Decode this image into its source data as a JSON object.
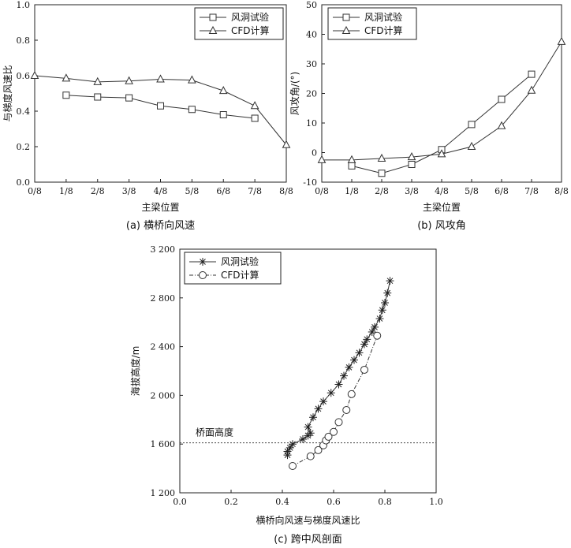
{
  "chart_data": [
    {
      "id": "a",
      "type": "line",
      "caption": "(a) 横桥向风速",
      "xlabel": "主梁位置",
      "ylabel": "与梯度风速比",
      "categories": [
        "0/8",
        "1/8",
        "2/8",
        "3/8",
        "4/8",
        "5/8",
        "6/8",
        "7/8",
        "8/8"
      ],
      "ylim": [
        0,
        1.0
      ],
      "yticks": [
        "0.0",
        "0.2",
        "0.4",
        "0.6",
        "0.8",
        "1.0"
      ],
      "series": [
        {
          "name": "风洞试验",
          "marker": "square",
          "values": [
            null,
            0.49,
            0.48,
            0.475,
            0.43,
            0.41,
            0.38,
            0.36,
            null
          ]
        },
        {
          "name": "CFD计算",
          "marker": "triangle",
          "values": [
            0.6,
            0.585,
            0.565,
            0.57,
            0.58,
            0.575,
            0.515,
            0.43,
            0.21
          ]
        }
      ],
      "legend": "top-right"
    },
    {
      "id": "b",
      "type": "line",
      "caption": "(b) 风攻角",
      "xlabel": "主梁位置",
      "ylabel": "风攻角/(°)",
      "categories": [
        "0/8",
        "1/8",
        "2/8",
        "3/8",
        "4/8",
        "5/8",
        "6/8",
        "7/8",
        "8/8"
      ],
      "ylim": [
        -10,
        50
      ],
      "yticks": [
        "-10",
        "0",
        "10",
        "20",
        "30",
        "40",
        "50"
      ],
      "series": [
        {
          "name": "风洞试验",
          "marker": "square",
          "values": [
            null,
            -4.5,
            -7,
            -4,
            1,
            9.5,
            18,
            26.5,
            null
          ]
        },
        {
          "name": "CFD计算",
          "marker": "triangle",
          "values": [
            -2.5,
            -2.5,
            -2,
            -1.5,
            -0.5,
            2,
            9,
            21,
            37.5
          ]
        }
      ],
      "legend": "top-left"
    },
    {
      "id": "c",
      "type": "line",
      "caption": "(c) 跨中风剖面",
      "xlabel": "横桥向风速与梯度风速比",
      "ylabel": "海拔高度/m",
      "xlim": [
        0.0,
        1.0
      ],
      "ylim": [
        1200,
        3200
      ],
      "xticks": [
        "0.0",
        "0.2",
        "0.4",
        "0.6",
        "0.8",
        "1.0"
      ],
      "yticks": [
        "1 200",
        "1 600",
        "2 000",
        "2 400",
        "2 800",
        "3 200"
      ],
      "series": [
        {
          "name": "风洞试验",
          "marker": "star",
          "line": "solid",
          "x": [
            0.42,
            0.42,
            0.43,
            0.44,
            0.48,
            0.5,
            0.51,
            0.5,
            0.52,
            0.54,
            0.56,
            0.59,
            0.62,
            0.64,
            0.66,
            0.68,
            0.7,
            0.72,
            0.73,
            0.75,
            0.76,
            0.78,
            0.79,
            0.8,
            0.81,
            0.82
          ],
          "y": [
            1510,
            1540,
            1570,
            1600,
            1640,
            1670,
            1690,
            1740,
            1820,
            1890,
            1950,
            2020,
            2090,
            2160,
            2230,
            2290,
            2350,
            2420,
            2460,
            2520,
            2560,
            2630,
            2700,
            2760,
            2840,
            2940
          ]
        },
        {
          "name": "CFD计算",
          "marker": "circle",
          "line": "dash-dot",
          "x": [
            0.44,
            0.51,
            0.54,
            0.56,
            0.57,
            0.58,
            0.6,
            0.62,
            0.65,
            0.67,
            0.72,
            0.77
          ],
          "y": [
            1420,
            1500,
            1550,
            1590,
            1630,
            1660,
            1700,
            1780,
            1880,
            2010,
            2210,
            2490
          ]
        }
      ],
      "annotation": "桥面高度",
      "reference_line": {
        "y": 1610,
        "style": "dotted"
      },
      "legend": "top-left"
    }
  ]
}
